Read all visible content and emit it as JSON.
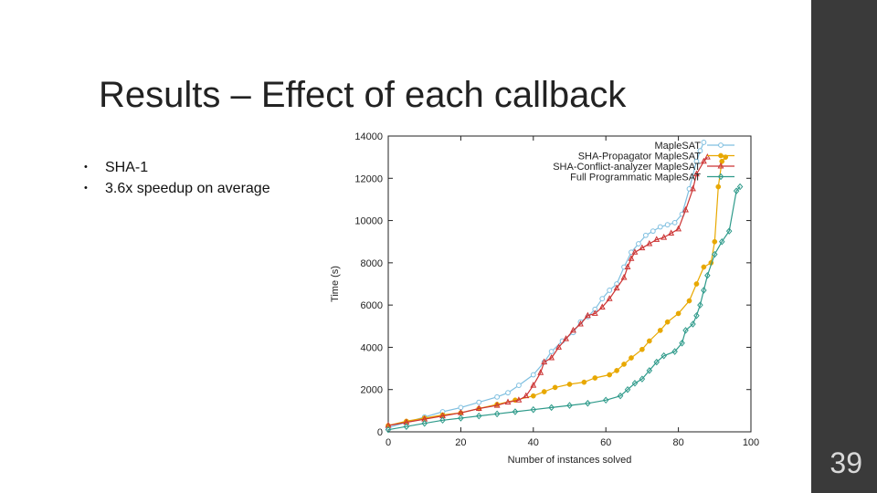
{
  "slide": {
    "title": "Results – Effect of each callback",
    "bullets": [
      "SHA-1",
      "3.6x speedup on average"
    ],
    "page_number": "39"
  },
  "chart_data": {
    "type": "line",
    "xlabel": "Number of instances solved",
    "ylabel": "Time (s)",
    "xlim": [
      0,
      100
    ],
    "ylim": [
      0,
      14000
    ],
    "xticks": [
      0,
      20,
      40,
      60,
      80,
      100
    ],
    "yticks": [
      0,
      2000,
      4000,
      6000,
      8000,
      10000,
      12000,
      14000
    ],
    "legend_position": "top-right",
    "series": [
      {
        "name": "MapleSAT",
        "color": "#7fbfe0",
        "marker": "circle",
        "points": [
          [
            0,
            200
          ],
          [
            5,
            450
          ],
          [
            10,
            700
          ],
          [
            15,
            950
          ],
          [
            20,
            1150
          ],
          [
            25,
            1400
          ],
          [
            30,
            1650
          ],
          [
            33,
            1850
          ],
          [
            36,
            2200
          ],
          [
            40,
            2700
          ],
          [
            43,
            3300
          ],
          [
            45,
            3800
          ],
          [
            48,
            4300
          ],
          [
            51,
            4700
          ],
          [
            53,
            5200
          ],
          [
            55,
            5450
          ],
          [
            57,
            5800
          ],
          [
            59,
            6300
          ],
          [
            61,
            6700
          ],
          [
            63,
            7000
          ],
          [
            65,
            7800
          ],
          [
            67,
            8500
          ],
          [
            69,
            8900
          ],
          [
            71,
            9300
          ],
          [
            73,
            9500
          ],
          [
            75,
            9700
          ],
          [
            77,
            9800
          ],
          [
            79,
            9900
          ],
          [
            81,
            10300
          ],
          [
            83,
            11500
          ],
          [
            85,
            12800
          ],
          [
            86,
            13300
          ],
          [
            87,
            13700
          ]
        ]
      },
      {
        "name": "SHA-Propagator MapleSAT",
        "color": "#e8a800",
        "marker": "filled-circle",
        "points": [
          [
            0,
            300
          ],
          [
            5,
            500
          ],
          [
            10,
            650
          ],
          [
            15,
            800
          ],
          [
            20,
            900
          ],
          [
            25,
            1100
          ],
          [
            30,
            1300
          ],
          [
            35,
            1500
          ],
          [
            40,
            1700
          ],
          [
            43,
            1900
          ],
          [
            46,
            2100
          ],
          [
            50,
            2250
          ],
          [
            54,
            2350
          ],
          [
            57,
            2550
          ],
          [
            61,
            2700
          ],
          [
            63,
            2900
          ],
          [
            65,
            3200
          ],
          [
            67,
            3500
          ],
          [
            70,
            3900
          ],
          [
            72,
            4300
          ],
          [
            75,
            4800
          ],
          [
            77,
            5200
          ],
          [
            80,
            5600
          ],
          [
            83,
            6200
          ],
          [
            85,
            7000
          ],
          [
            87,
            7800
          ],
          [
            89,
            8000
          ],
          [
            90,
            9000
          ],
          [
            91,
            11600
          ],
          [
            92,
            12800
          ],
          [
            93,
            13000
          ]
        ]
      },
      {
        "name": "SHA-Conflict-analyzer MapleSAT",
        "color": "#cc3333",
        "marker": "triangle",
        "points": [
          [
            0,
            300
          ],
          [
            5,
            450
          ],
          [
            10,
            600
          ],
          [
            15,
            750
          ],
          [
            20,
            900
          ],
          [
            25,
            1100
          ],
          [
            30,
            1250
          ],
          [
            33,
            1400
          ],
          [
            36,
            1500
          ],
          [
            38,
            1700
          ],
          [
            40,
            2200
          ],
          [
            42,
            2800
          ],
          [
            43,
            3300
          ],
          [
            45,
            3500
          ],
          [
            47,
            4000
          ],
          [
            49,
            4400
          ],
          [
            51,
            4800
          ],
          [
            53,
            5100
          ],
          [
            55,
            5500
          ],
          [
            57,
            5600
          ],
          [
            59,
            5900
          ],
          [
            61,
            6300
          ],
          [
            63,
            6800
          ],
          [
            65,
            7300
          ],
          [
            66,
            7800
          ],
          [
            67,
            8200
          ],
          [
            68,
            8500
          ],
          [
            70,
            8700
          ],
          [
            72,
            8900
          ],
          [
            74,
            9100
          ],
          [
            76,
            9200
          ],
          [
            78,
            9400
          ],
          [
            80,
            9600
          ],
          [
            82,
            10500
          ],
          [
            84,
            11500
          ],
          [
            85,
            12200
          ],
          [
            87,
            12800
          ],
          [
            88,
            13000
          ]
        ]
      },
      {
        "name": "Full Programmatic MapleSAT",
        "color": "#2e9a8a",
        "marker": "diamond",
        "points": [
          [
            0,
            100
          ],
          [
            5,
            250
          ],
          [
            10,
            400
          ],
          [
            15,
            550
          ],
          [
            20,
            650
          ],
          [
            25,
            750
          ],
          [
            30,
            850
          ],
          [
            35,
            950
          ],
          [
            40,
            1050
          ],
          [
            45,
            1150
          ],
          [
            50,
            1250
          ],
          [
            55,
            1350
          ],
          [
            60,
            1500
          ],
          [
            64,
            1700
          ],
          [
            66,
            2000
          ],
          [
            68,
            2300
          ],
          [
            70,
            2500
          ],
          [
            72,
            2900
          ],
          [
            74,
            3300
          ],
          [
            76,
            3600
          ],
          [
            79,
            3800
          ],
          [
            81,
            4200
          ],
          [
            82,
            4800
          ],
          [
            84,
            5100
          ],
          [
            85,
            5500
          ],
          [
            86,
            6000
          ],
          [
            87,
            6700
          ],
          [
            88,
            7400
          ],
          [
            90,
            8400
          ],
          [
            92,
            9000
          ],
          [
            94,
            9500
          ],
          [
            96,
            11400
          ],
          [
            97,
            11600
          ]
        ]
      }
    ]
  }
}
